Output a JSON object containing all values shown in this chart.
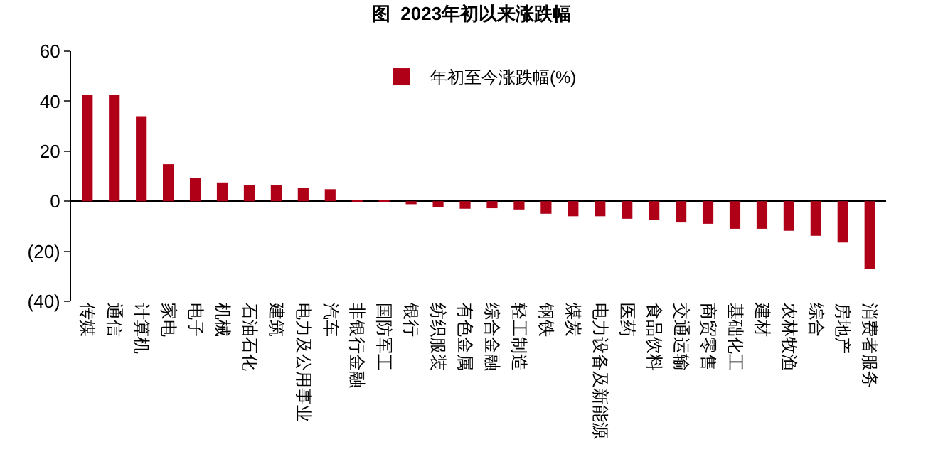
{
  "chart_data": {
    "type": "bar",
    "title": "图  2023年初以来涨跌幅",
    "categories": [
      "传媒",
      "通信",
      "计算机",
      "家电",
      "电子",
      "机械",
      "石油石化",
      "建筑",
      "电力及公用事业",
      "汽车",
      "非银行金融",
      "国防军工",
      "银行",
      "纺织服装",
      "有色金属",
      "综合金融",
      "轻工制造",
      "钢铁",
      "煤炭",
      "电力设备及新能源",
      "医药",
      "食品饮料",
      "交通运输",
      "商贸零售",
      "基础化工",
      "建材",
      "农林牧渔",
      "综合",
      "房地产",
      "消费者服务"
    ],
    "series": [
      {
        "name": "年初至今涨跌幅(%)",
        "color": "#b00018",
        "values": [
          42.5,
          42.5,
          34,
          14.8,
          9.3,
          7.5,
          6.5,
          6.5,
          5.3,
          4.8,
          0.2,
          0.1,
          -1.2,
          -2.5,
          -3,
          -2.8,
          -3.3,
          -5,
          -6,
          -6,
          -7,
          -7.5,
          -8.5,
          -9,
          -11,
          -11,
          -11.8,
          -13.8,
          -16.5,
          -27
        ]
      }
    ],
    "ylim": [
      -40,
      60
    ],
    "yticks": [
      {
        "value": -40,
        "label": "(40)"
      },
      {
        "value": -20,
        "label": "(20)"
      },
      0,
      20,
      40,
      60
    ],
    "legend": "top"
  }
}
